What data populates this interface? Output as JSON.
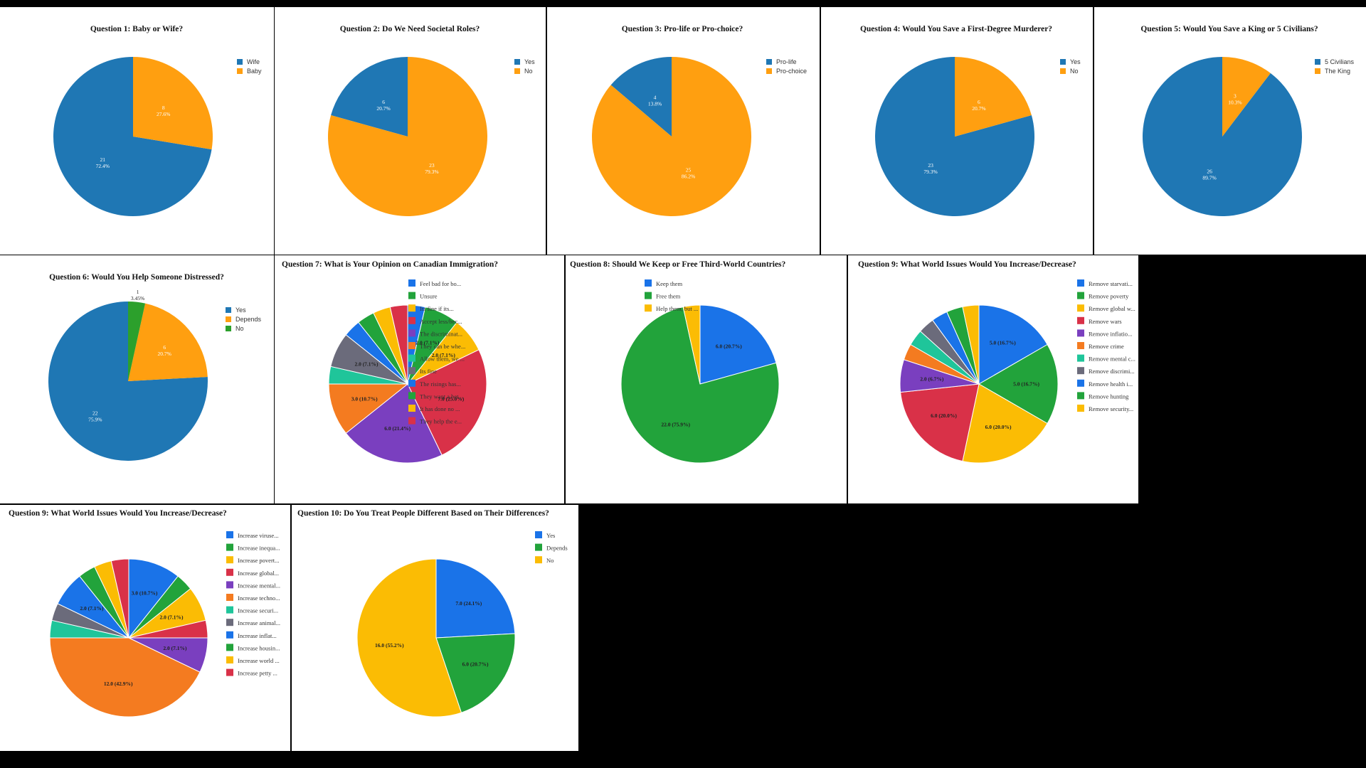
{
  "palettes": {
    "plotly": [
      "#1f77b4",
      "#ff9f10",
      "#2ca02c"
    ],
    "google": [
      "#1a73e8",
      "#22a33b",
      "#fbbc04",
      "#d93148",
      "#7a3fbf",
      "#f47b20",
      "#1fc59a",
      "#6b6b7b",
      "#1a73e8",
      "#22a33b",
      "#fbbc04",
      "#d93148"
    ]
  },
  "chart_data": [
    {
      "id": "q1",
      "type": "pie",
      "title": "Question 1: Baby or Wife?",
      "categories": [
        "Wife",
        "Baby"
      ],
      "values": [
        21,
        8
      ],
      "labels": [
        "21\n72.4%",
        "8\n27.6%"
      ]
    },
    {
      "id": "q2",
      "type": "pie",
      "title": "Question 2: Do We Need Societal Roles?",
      "categories": [
        "Yes",
        "No"
      ],
      "values": [
        6,
        23
      ],
      "labels": [
        "6\n20.7%",
        "23\n79.3%"
      ]
    },
    {
      "id": "q3",
      "type": "pie",
      "title": "Question 3: Pro-life or Pro-choice?",
      "categories": [
        "Pro-life",
        "Pro-choice"
      ],
      "values": [
        4,
        25
      ],
      "labels": [
        "4\n13.8%",
        "25\n86.2%"
      ]
    },
    {
      "id": "q4",
      "type": "pie",
      "title": "Question 4: Would You Save a First-Degree Murderer?",
      "categories": [
        "Yes",
        "No"
      ],
      "values": [
        23,
        6
      ],
      "labels": [
        "23\n79.3%",
        "6\n20.7%"
      ]
    },
    {
      "id": "q5",
      "type": "pie",
      "title": "Question 5: Would You Save a King or 5 Civilians?",
      "categories": [
        "5 Civilians",
        "The King"
      ],
      "values": [
        26,
        3
      ],
      "labels": [
        "26\n89.7%",
        "3\n10.3%"
      ]
    },
    {
      "id": "q6",
      "type": "pie",
      "title": "Question 6: Would You Help Someone Distressed?",
      "categories": [
        "Yes",
        "Depends",
        "No"
      ],
      "values": [
        22,
        6,
        1
      ],
      "labels": [
        "22\n75.9%",
        "6\n20.7%",
        "1\n3.45%"
      ]
    },
    {
      "id": "q7",
      "type": "pie",
      "title": "Question 7: What is Your Opinion on Canadian Immigration?",
      "categories": [
        "Feel bad for bo...",
        "Unsure",
        "Its fine if its...",
        "Accept less/bec...",
        "The discriminat...",
        "They can be whe...",
        "Allow them, we ...",
        "Its fine",
        "The risings has...",
        "They want a bet...",
        "It has done no ...",
        "They help the e..."
      ],
      "values": [
        1,
        2,
        2,
        7,
        6,
        3,
        1,
        2,
        1,
        1,
        1,
        1
      ],
      "labels": [
        "",
        "2.0 (7.1%)",
        "2.0 (7.1%)",
        "7.0 (25.0%)",
        "6.0 (21.4%)",
        "3.0 (10.7%)",
        "",
        "2.0 (7.1%)",
        "",
        "",
        "",
        ""
      ]
    },
    {
      "id": "q8",
      "type": "pie",
      "title": "Question 8: Should We Keep or Free Third-World Countries?",
      "categories": [
        "Keep them",
        "Free them",
        "Help them, but ..."
      ],
      "values": [
        6,
        22,
        1
      ],
      "labels": [
        "6.0 (20.7%)",
        "22.0 (75.9%)",
        ""
      ]
    },
    {
      "id": "q9a",
      "type": "pie",
      "title": "Question 9: What World Issues Would You Increase/Decrease?",
      "categories": [
        "Remove starvati...",
        "Remove poverty",
        "Remove global w...",
        "Remove wars",
        "Remove inflatio...",
        "Remove crime",
        "Remove mental c...",
        "Remove discrimi...",
        "Remove health i...",
        "Remove hunting",
        "Remove security..."
      ],
      "values": [
        5,
        5,
        6,
        6,
        2,
        1,
        1,
        1,
        1,
        1,
        1
      ],
      "labels": [
        "5.0 (16.7%)",
        "5.0 (16.7%)",
        "6.0 (20.0%)",
        "6.0 (20.0%)",
        "2.0 (6.7%)",
        "",
        "",
        "",
        "",
        "",
        ""
      ]
    },
    {
      "id": "q9b",
      "type": "pie",
      "title": "Question 9: What World Issues Would You Increase/Decrease?",
      "categories": [
        "Increase viruse...",
        "Increase inequa...",
        "Increase povert...",
        "Increase global...",
        "Increase mental...",
        "Increase techno...",
        "Increase securi...",
        "Increase animal...",
        "Increase inflat...",
        "Increase housin...",
        "Increase world ...",
        "Increase petty ..."
      ],
      "values": [
        3,
        1,
        2,
        1,
        2,
        12,
        1,
        1,
        2,
        1,
        1,
        1
      ],
      "labels": [
        "3.0 (10.7%)",
        "",
        "2.0 (7.1%)",
        "",
        "2.0 (7.1%)",
        "12.0 (42.9%)",
        "",
        "",
        "2.0 (7.1%)",
        "",
        "",
        ""
      ]
    },
    {
      "id": "q10",
      "type": "pie",
      "title": "Question 10: Do You Treat People Different Based on Their Differences?",
      "categories": [
        "Yes",
        "Depends",
        "No"
      ],
      "values": [
        7,
        6,
        16
      ],
      "labels": [
        "7.0 (24.1%)",
        "6.0 (20.7%)",
        "16.0 (55.2%)"
      ]
    }
  ]
}
